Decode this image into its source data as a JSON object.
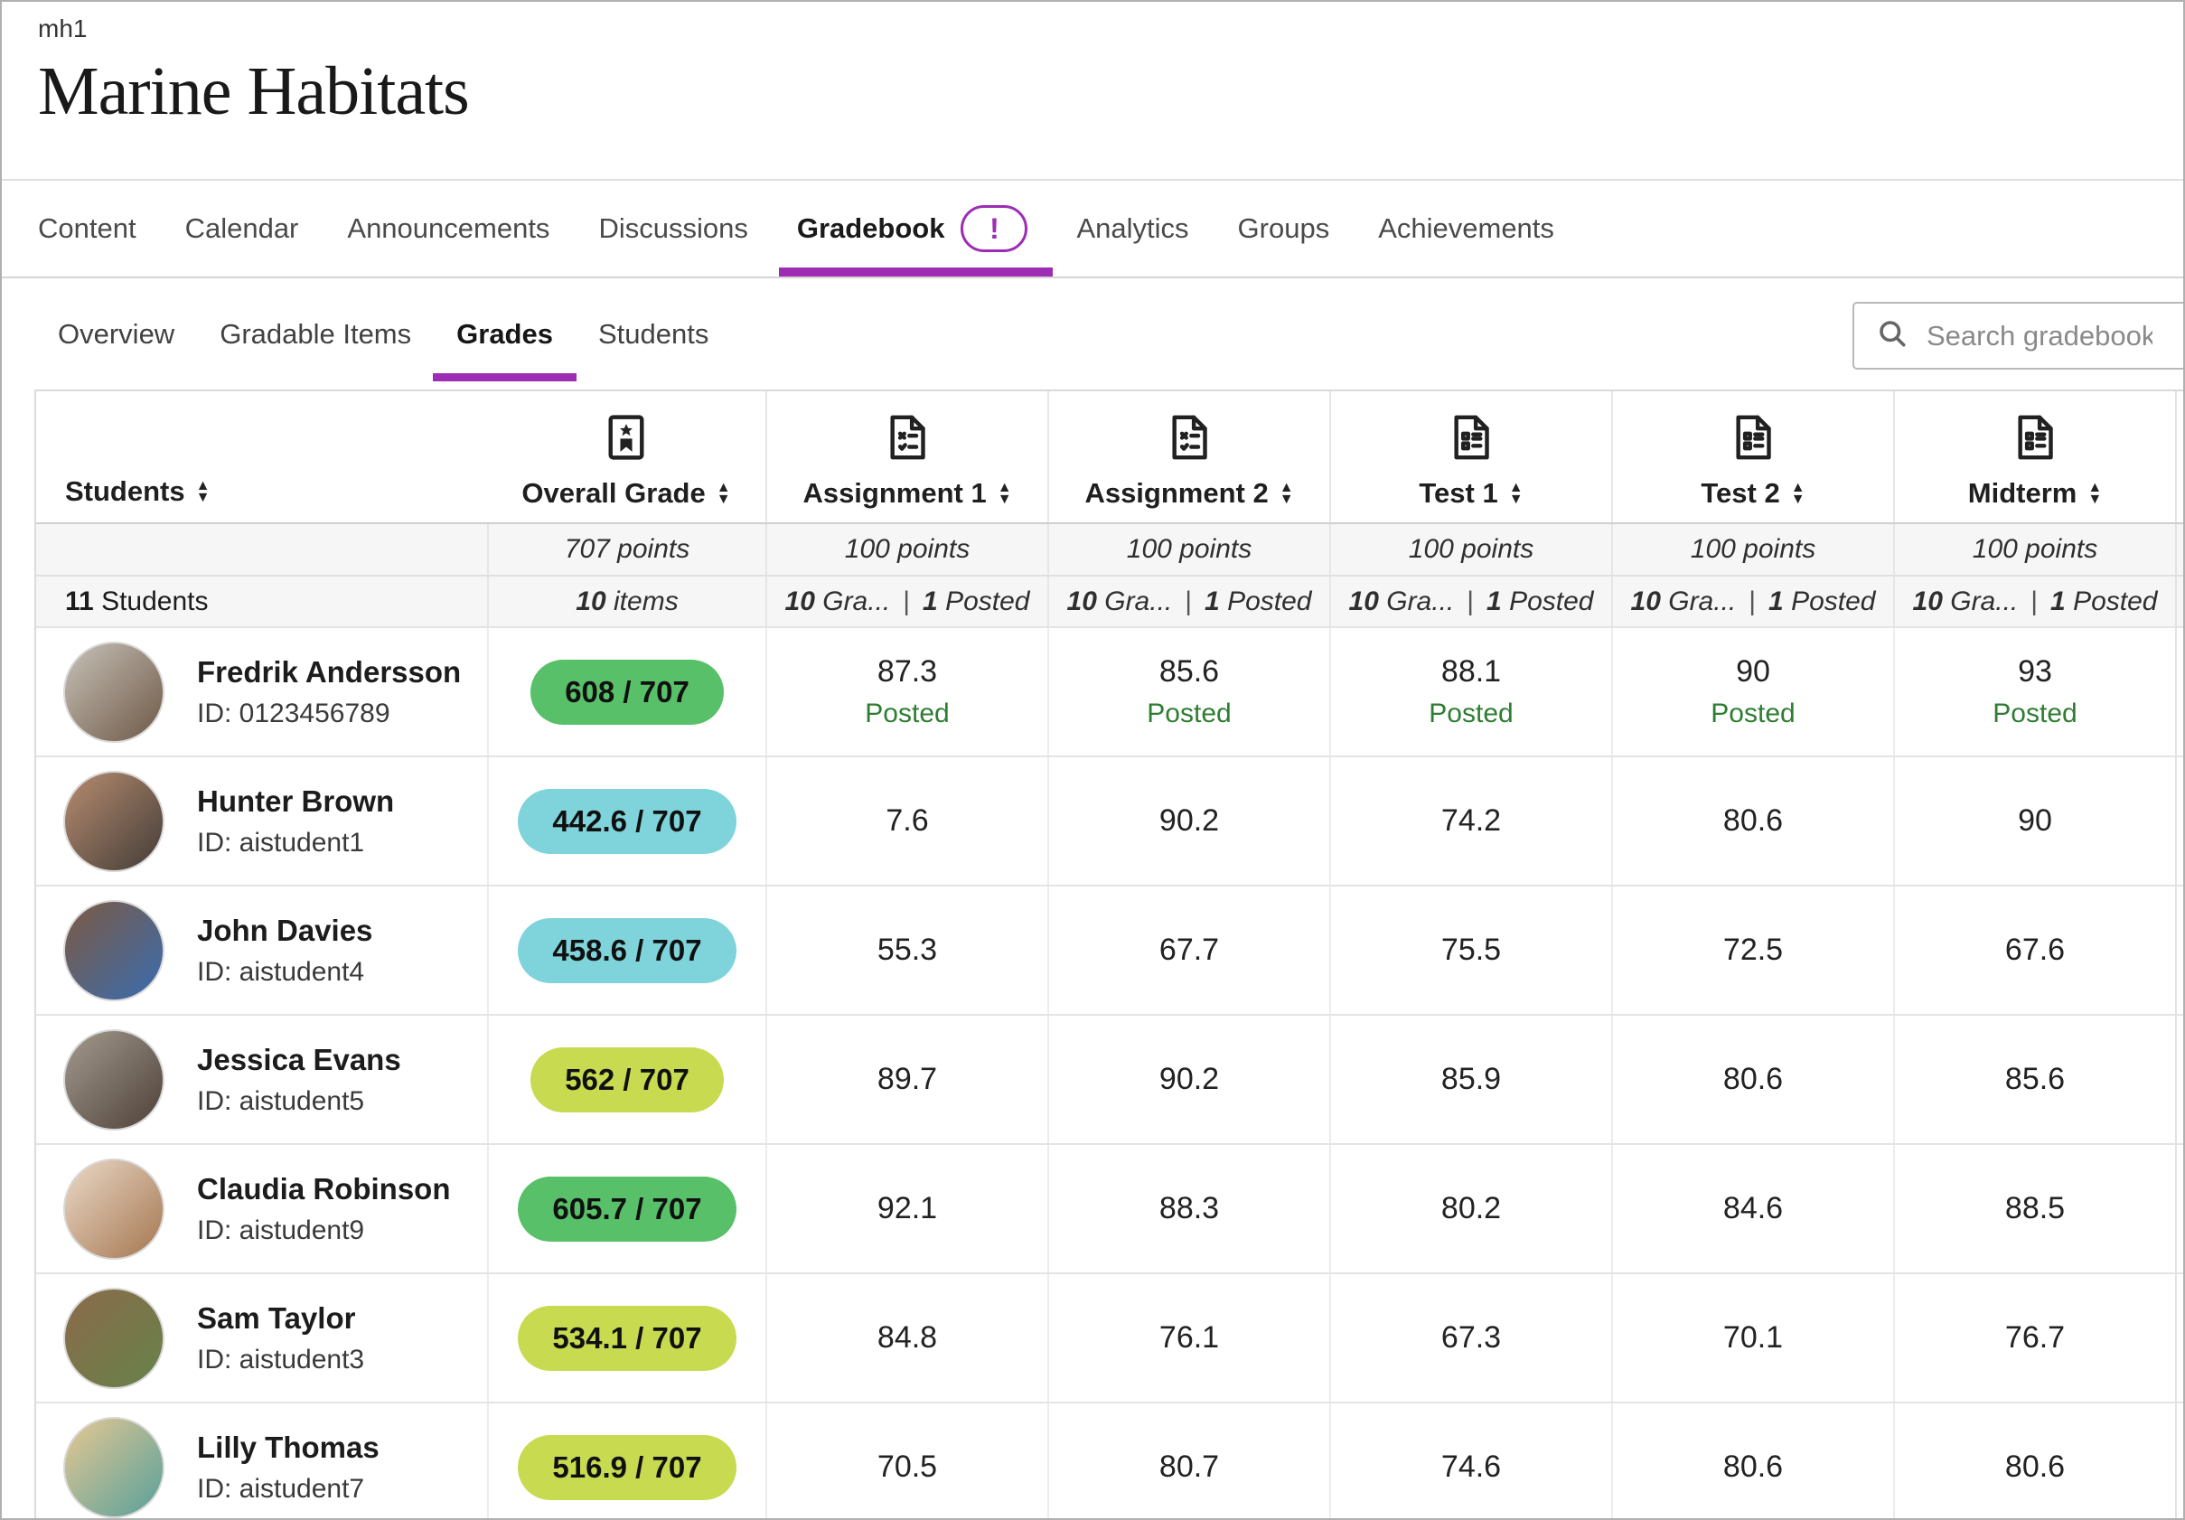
{
  "page": {
    "course_code": "mh1",
    "course_title": "Marine Habitats"
  },
  "colors": {
    "accent": "#9d2db3",
    "posted_green": "#2e7d32",
    "pill_green": "#57c068",
    "pill_teal": "#7fd3da",
    "pill_lime": "#c8da50"
  },
  "nav": {
    "items": [
      {
        "label": "Content"
      },
      {
        "label": "Calendar"
      },
      {
        "label": "Announcements"
      },
      {
        "label": "Discussions"
      },
      {
        "label": "Gradebook",
        "active": true,
        "badge": "!"
      },
      {
        "label": "Analytics"
      },
      {
        "label": "Groups"
      },
      {
        "label": "Achievements"
      }
    ]
  },
  "subnav": {
    "items": [
      {
        "label": "Overview"
      },
      {
        "label": "Gradable Items"
      },
      {
        "label": "Grades",
        "active": true
      },
      {
        "label": "Students"
      }
    ],
    "search_placeholder": "Search gradebook"
  },
  "table": {
    "students_label": "Students",
    "students_count_bold": "11",
    "students_count_rest": "Students",
    "overall": {
      "label": "Overall Grade",
      "points": "707 points",
      "items_bold": "10",
      "items_rest": "items"
    },
    "columns": [
      {
        "label": "Assignment 1",
        "icon": "assignment",
        "points": "100 points",
        "graded_bold": "10",
        "graded_rest": "Gra...",
        "sep": "|",
        "posted_bold": "1",
        "posted_rest": "Posted"
      },
      {
        "label": "Assignment 2",
        "icon": "assignment",
        "points": "100 points",
        "graded_bold": "10",
        "graded_rest": "Gra...",
        "sep": "|",
        "posted_bold": "1",
        "posted_rest": "Posted"
      },
      {
        "label": "Test 1",
        "icon": "test",
        "points": "100 points",
        "graded_bold": "10",
        "graded_rest": "Gra...",
        "sep": "|",
        "posted_bold": "1",
        "posted_rest": "Posted"
      },
      {
        "label": "Test 2",
        "icon": "test",
        "points": "100 points",
        "graded_bold": "10",
        "graded_rest": "Gra...",
        "sep": "|",
        "posted_bold": "1",
        "posted_rest": "Posted"
      },
      {
        "label": "Midterm",
        "icon": "test",
        "points": "100 points",
        "graded_bold": "10",
        "graded_rest": "Gra...",
        "sep": "|",
        "posted_bold": "1",
        "posted_rest": "Posted"
      }
    ],
    "students": [
      {
        "name": "Fredrik Andersson",
        "id": "ID: 0123456789",
        "overall": "608 / 707",
        "tier": "pill_green",
        "avatar": [
          "#c7c2b8",
          "#6e5847"
        ],
        "scores": [
          {
            "v": "87.3",
            "posted": "Posted"
          },
          {
            "v": "85.6",
            "posted": "Posted"
          },
          {
            "v": "88.1",
            "posted": "Posted"
          },
          {
            "v": "90",
            "posted": "Posted"
          },
          {
            "v": "93",
            "posted": "Posted"
          }
        ]
      },
      {
        "name": "Hunter Brown",
        "id": "ID: aistudent1",
        "overall": "442.6 / 707",
        "tier": "pill_teal",
        "avatar": [
          "#b78c6f",
          "#433c38"
        ],
        "scores": [
          {
            "v": "7.6"
          },
          {
            "v": "90.2"
          },
          {
            "v": "74.2"
          },
          {
            "v": "80.6"
          },
          {
            "v": "90"
          }
        ]
      },
      {
        "name": "John Davies",
        "id": "ID: aistudent4",
        "overall": "458.6 / 707",
        "tier": "pill_teal",
        "avatar": [
          "#7c5a42",
          "#3a6cb0"
        ],
        "scores": [
          {
            "v": "55.3"
          },
          {
            "v": "67.7"
          },
          {
            "v": "75.5"
          },
          {
            "v": "72.5"
          },
          {
            "v": "67.6"
          }
        ]
      },
      {
        "name": "Jessica Evans",
        "id": "ID: aistudent5",
        "overall": "562 / 707",
        "tier": "pill_lime",
        "avatar": [
          "#a39a8e",
          "#4e4138"
        ],
        "scores": [
          {
            "v": "89.7"
          },
          {
            "v": "90.2"
          },
          {
            "v": "85.9"
          },
          {
            "v": "80.6"
          },
          {
            "v": "85.6"
          }
        ]
      },
      {
        "name": "Claudia Robinson",
        "id": "ID: aistudent9",
        "overall": "605.7 / 707",
        "tier": "pill_green",
        "avatar": [
          "#ead9c8",
          "#a5764f"
        ],
        "scores": [
          {
            "v": "92.1"
          },
          {
            "v": "88.3"
          },
          {
            "v": "80.2"
          },
          {
            "v": "84.6"
          },
          {
            "v": "88.5"
          }
        ]
      },
      {
        "name": "Sam Taylor",
        "id": "ID: aistudent3",
        "overall": "534.1 / 707",
        "tier": "pill_lime",
        "avatar": [
          "#8c6a4a",
          "#66824a"
        ],
        "scores": [
          {
            "v": "84.8"
          },
          {
            "v": "76.1"
          },
          {
            "v": "67.3"
          },
          {
            "v": "70.1"
          },
          {
            "v": "76.7"
          }
        ]
      },
      {
        "name": "Lilly Thomas",
        "id": "ID: aistudent7",
        "overall": "516.9 / 707",
        "tier": "pill_lime",
        "avatar": [
          "#e6c892",
          "#57a09b"
        ],
        "scores": [
          {
            "v": "70.5"
          },
          {
            "v": "80.7"
          },
          {
            "v": "74.6"
          },
          {
            "v": "80.6"
          },
          {
            "v": "80.6"
          }
        ]
      }
    ]
  }
}
